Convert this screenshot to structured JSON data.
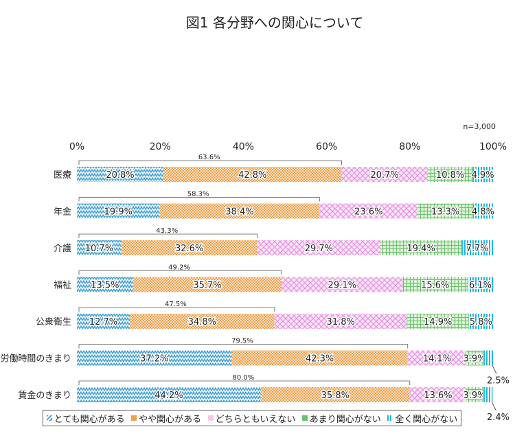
{
  "chart_data": {
    "type": "bar",
    "stacked": true,
    "orientation": "horizontal",
    "title": "図1 各分野への関心について",
    "note": "n=3,000",
    "x_ticks": [
      "0%",
      "20%",
      "40%",
      "60%",
      "80%",
      "100%"
    ],
    "xlim": [
      0,
      100
    ],
    "categories": [
      "医療",
      "年金",
      "介護",
      "福祉",
      "公衆衛生",
      "労働時間のきまり",
      "賃金のきまり"
    ],
    "series": [
      {
        "name": "とても関心がある",
        "color": "#3d9fd6",
        "values": [
          20.8,
          19.9,
          10.7,
          13.5,
          12.7,
          37.2,
          44.2
        ]
      },
      {
        "name": "やや関心がある",
        "color": "#f0a050",
        "values": [
          42.8,
          38.4,
          32.6,
          35.7,
          34.8,
          42.3,
          35.8
        ]
      },
      {
        "name": "どちらともいえない",
        "color": "#e890e0",
        "values": [
          20.7,
          23.6,
          29.7,
          29.1,
          31.8,
          14.1,
          13.6
        ]
      },
      {
        "name": "あまり関心がない",
        "color": "#6cc26c",
        "values": [
          10.8,
          13.3,
          19.4,
          15.6,
          14.9,
          3.9,
          3.9
        ]
      },
      {
        "name": "全く関心がない",
        "color": "#1fb8dd",
        "values": [
          4.9,
          4.8,
          7.7,
          6.1,
          5.8,
          2.5,
          2.4
        ]
      }
    ],
    "value_labels": [
      [
        "20.8%",
        "42.8%",
        "20.7%",
        "10.8%",
        "4.9%"
      ],
      [
        "19.9%",
        "38.4%",
        "23.6%",
        "13.3%",
        "4.8%"
      ],
      [
        "10.7%",
        "32.6%",
        "29.7%",
        "19.4%",
        "7.7%"
      ],
      [
        "13.5%",
        "35.7%",
        "29.1%",
        "15.6%",
        "6.1%"
      ],
      [
        "12.7%",
        "34.8%",
        "31.8%",
        "14.9%",
        "5.8%"
      ],
      [
        "37.2%",
        "42.3%",
        "14.1%",
        "3.9%",
        "2.5%"
      ],
      [
        "44.2%",
        "35.8%",
        "13.6%",
        "3.9%",
        "2.4%"
      ]
    ],
    "bracket_totals": [
      63.6,
      58.3,
      43.3,
      49.2,
      47.5,
      79.5,
      80.0
    ],
    "bracket_labels": [
      "63.6%",
      "58.3%",
      "43.3%",
      "49.2%",
      "47.5%",
      "79.5%",
      "80.0%"
    ],
    "outside_label_rows": [
      5,
      6
    ]
  }
}
